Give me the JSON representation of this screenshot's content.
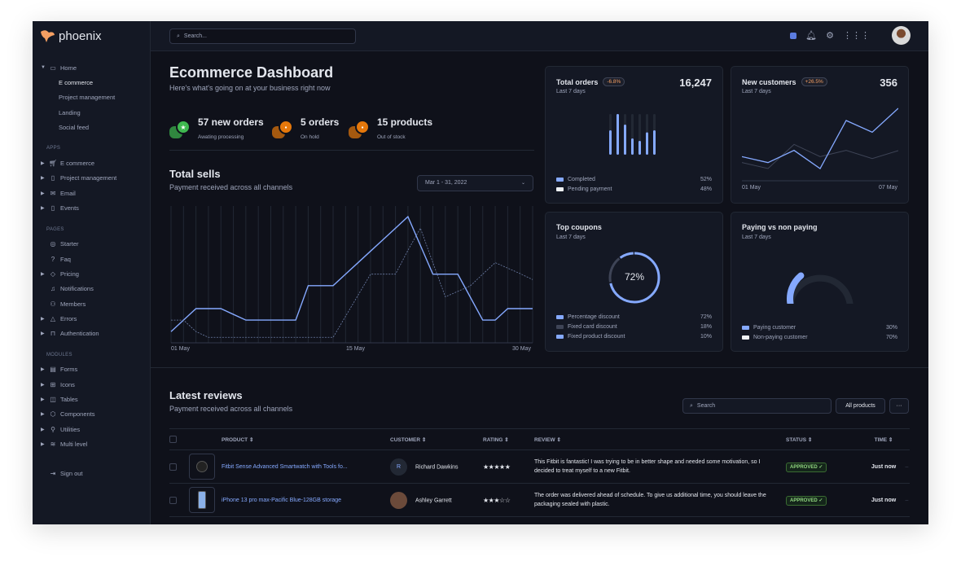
{
  "brand": {
    "name": "phoenix",
    "accent": "#f59f62"
  },
  "sidebar": {
    "home": {
      "label": "Home",
      "children": [
        "E commerce",
        "Project management",
        "Landing",
        "Social feed"
      ]
    },
    "sections": [
      {
        "title": "APPS",
        "items": [
          {
            "label": "E commerce",
            "icon": "cart-icon",
            "expandable": true
          },
          {
            "label": "Project management",
            "icon": "clipboard-icon",
            "expandable": true
          },
          {
            "label": "Email",
            "icon": "mail-icon",
            "expandable": true
          },
          {
            "label": "Events",
            "icon": "clipboard-icon",
            "expandable": true
          }
        ]
      },
      {
        "title": "PAGES",
        "items": [
          {
            "label": "Starter",
            "icon": "compass-icon",
            "expandable": false
          },
          {
            "label": "Faq",
            "icon": "help-icon",
            "expandable": false
          },
          {
            "label": "Pricing",
            "icon": "tag-icon",
            "expandable": true
          },
          {
            "label": "Notifications",
            "icon": "bell-icon",
            "expandable": false
          },
          {
            "label": "Members",
            "icon": "users-icon",
            "expandable": false
          },
          {
            "label": "Errors",
            "icon": "alert-icon",
            "expandable": true
          },
          {
            "label": "Authentication",
            "icon": "lock-icon",
            "expandable": true
          }
        ]
      },
      {
        "title": "MODULES",
        "items": [
          {
            "label": "Forms",
            "icon": "file-icon",
            "expandable": true
          },
          {
            "label": "Icons",
            "icon": "grid-icon",
            "expandable": true
          },
          {
            "label": "Tables",
            "icon": "columns-icon",
            "expandable": true
          },
          {
            "label": "Components",
            "icon": "package-icon",
            "expandable": true
          },
          {
            "label": "Utilities",
            "icon": "tool-icon",
            "expandable": true
          },
          {
            "label": "Multi level",
            "icon": "layers-icon",
            "expandable": true
          }
        ]
      }
    ],
    "sign_out": "Sign out"
  },
  "header": {
    "search_placeholder": "Search..."
  },
  "dashboard": {
    "title": "Ecommerce Dashboard",
    "subtitle": "Here's what's going on at your business right now",
    "stats": [
      {
        "value": "57 new orders",
        "label": "Awating processing",
        "color": "#3fb950"
      },
      {
        "value": "5 orders",
        "label": "On hold",
        "color": "#e5780b"
      },
      {
        "value": "15 products",
        "label": "Out of stock",
        "color": "#e5780b"
      }
    ],
    "sells": {
      "title": "Total sells",
      "subtitle": "Payment received across all channels",
      "date_range": "Mar 1 - 31, 2022"
    }
  },
  "chart_data": [
    {
      "type": "line",
      "title": "Total sells",
      "x": [
        1,
        2,
        3,
        4,
        5,
        6,
        7,
        8,
        9,
        10,
        11,
        12,
        13,
        14,
        15,
        16,
        17,
        18,
        19,
        20,
        21,
        22,
        23,
        24,
        25,
        26,
        27,
        28,
        29,
        30
      ],
      "x_tick_labels": [
        "01 May",
        "15 May",
        "30 May"
      ],
      "ylim": [
        0,
        500
      ],
      "grid": "vertical",
      "series": [
        {
          "style": "solid",
          "color": "#85a9ff",
          "values": [
            41,
            83,
            125,
            125,
            125,
            104,
            83,
            83,
            83,
            83,
            83,
            209,
            209,
            209,
            251,
            293,
            335,
            377,
            419,
            461,
            356,
            251,
            251,
            251,
            167,
            83,
            83,
            125,
            125,
            125
          ]
        },
        {
          "style": "dashed",
          "color": "#6e7fa8",
          "values": [
            83,
            83,
            41,
            20,
            20,
            20,
            20,
            20,
            20,
            20,
            20,
            20,
            20,
            20,
            97,
            174,
            251,
            251,
            251,
            338,
            419,
            293,
            168,
            188,
            208,
            251,
            293,
            273,
            253,
            231
          ]
        }
      ]
    },
    {
      "type": "bar",
      "title": "Total orders",
      "subtitle": "Last 7 days",
      "total": "16,247",
      "badge": "-6.8%",
      "values": [
        0.6,
        1,
        0.74,
        0.4,
        0.34,
        0.55,
        0.6
      ],
      "legend": [
        {
          "label": "Completed",
          "value": "52%",
          "color": "#85a9ff"
        },
        {
          "label": "Pending payment",
          "value": "48%",
          "color": "#eff2f6"
        }
      ]
    },
    {
      "type": "line",
      "title": "New customers",
      "subtitle": "Last 7 days",
      "total": "356",
      "badge": "+26.5%",
      "x_tick_labels": [
        "01 May",
        "07 May"
      ],
      "ylim": [
        0,
        300
      ],
      "series": [
        {
          "color": "#85a9ff",
          "values": [
            89,
            67,
            112,
            45,
            222,
            179,
            267
          ]
        },
        {
          "color": "#3e4456",
          "values": [
            67,
            45,
            134,
            89,
            112,
            82,
            111
          ]
        }
      ]
    },
    {
      "type": "pie",
      "title": "Top coupons",
      "subtitle": "Last 7 days",
      "center_label": "72%",
      "slices": [
        {
          "label": "Percentage discount",
          "value": 72,
          "display": "72%",
          "color": "#85a9ff"
        },
        {
          "label": "Fixed card discount",
          "value": 18,
          "display": "18%",
          "color": "#3e4456"
        },
        {
          "label": "Fixed product discount",
          "value": 10,
          "display": "10%",
          "color": "#85a9ff"
        }
      ]
    },
    {
      "type": "pie",
      "title": "Paying vs non paying",
      "subtitle": "Last 7 days",
      "slices": [
        {
          "label": "Paying customer",
          "value": 30,
          "display": "30%",
          "color": "#85a9ff"
        },
        {
          "label": "Non-paying customer",
          "value": 70,
          "display": "70%",
          "color": "#eff2f6"
        }
      ]
    }
  ],
  "reviews": {
    "title": "Latest reviews",
    "subtitle": "Payment received across all channels",
    "search_placeholder": "Search",
    "filter": "All products",
    "more": "···",
    "columns": [
      "PRODUCT",
      "CUSTOMER",
      "RATING",
      "REVIEW",
      "STATUS",
      "TIME"
    ],
    "rows": [
      {
        "product": "Fitbit Sense Advanced Smartwatch with Tools fo...",
        "customer": "Richard Dawkins",
        "initial": "R",
        "rating": 5,
        "stars": "★★★★★",
        "review": "This Fitbit is fantastic! I was trying to be in better shape and needed some motivation, so I decided to treat myself to a new Fitbit.",
        "status": "APPROVED ✓",
        "time": "Just now"
      },
      {
        "product": "iPhone 13 pro max-Pacific Blue-128GB storage",
        "customer": "Ashley Garrett",
        "initial": "",
        "rating": 3,
        "stars": "★★★☆☆",
        "review": "The order was delivered ahead of schedule. To give us additional time, you should leave the packaging sealed with plastic.",
        "status": "APPROVED ✓",
        "time": "Just now"
      }
    ]
  }
}
